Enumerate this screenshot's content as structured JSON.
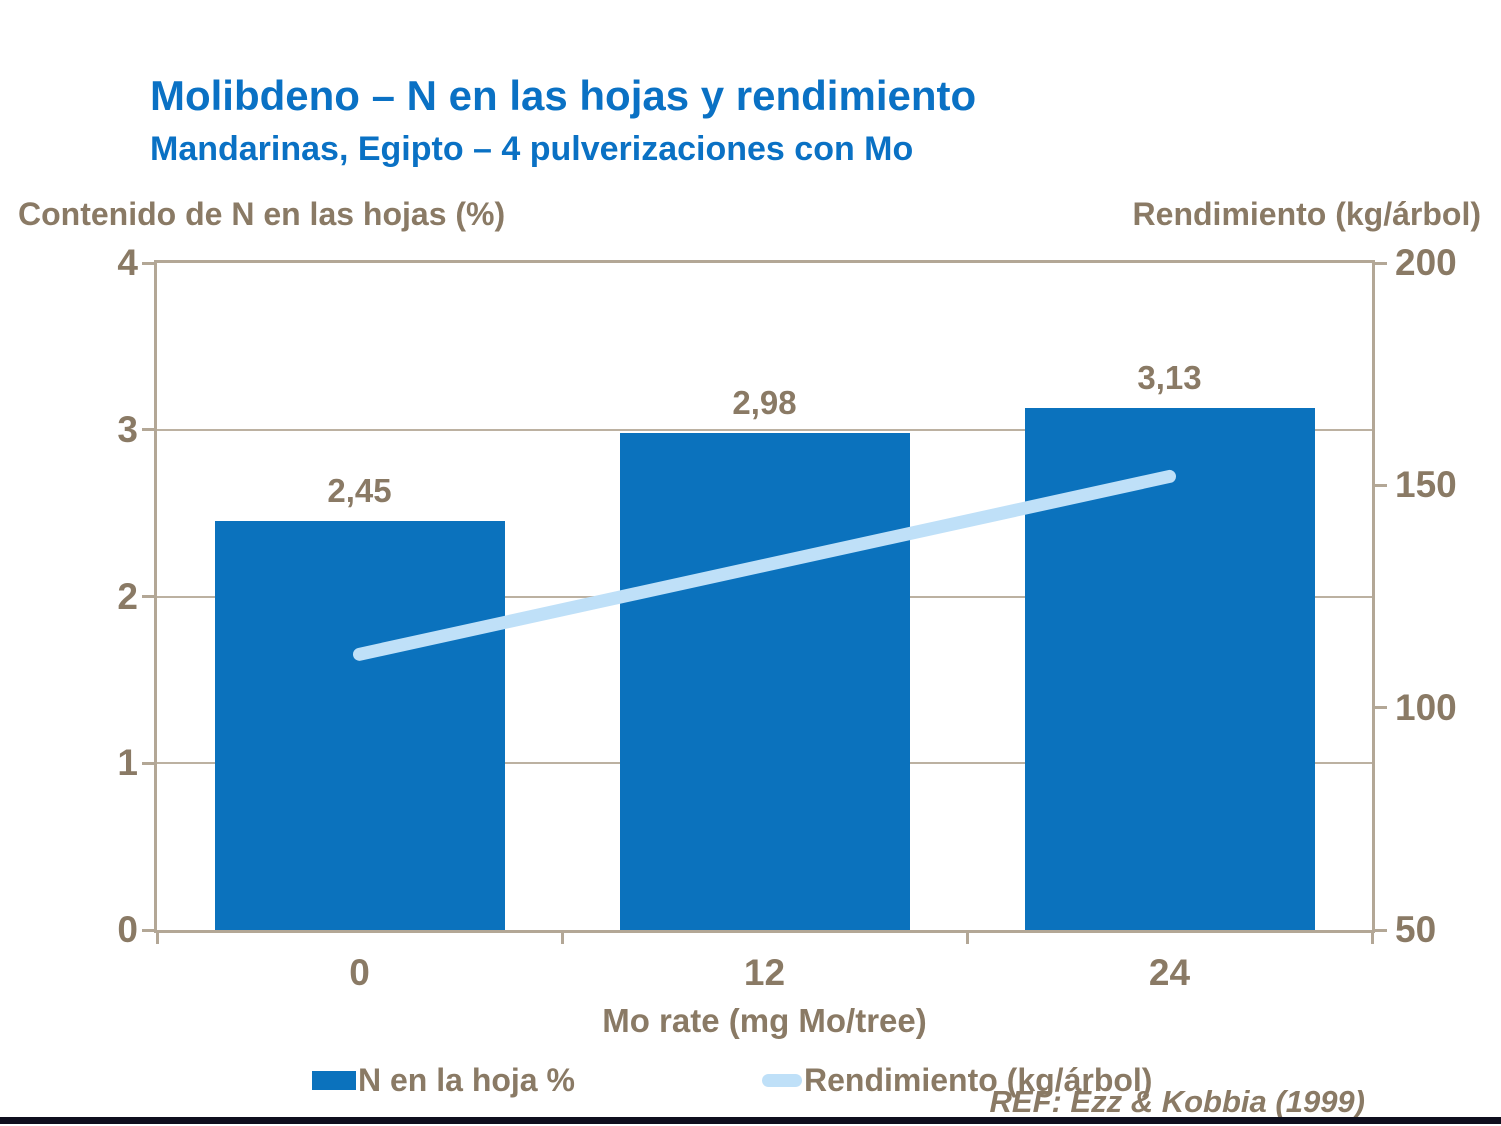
{
  "slide": {
    "title": "Molibdeno – N en las hojas y rendimiento",
    "subtitle": "Mandarinas, Egipto – 4 pulverizaciones con Mo",
    "reference": "REF: Ezz & Kobbia (1999)"
  },
  "colors": {
    "title_blue": "#0A71C4",
    "bar_blue": "#0B72BD",
    "line_light_blue": "#BFE0F8",
    "text_brown": "#8A7A65",
    "axis_tan": "#B3A796",
    "footer_band": "#0F0F1E"
  },
  "chart_data": {
    "type": "bar",
    "subtype": "combo bar + line, dual y-axis",
    "categories": [
      "0",
      "12",
      "24"
    ],
    "series": [
      {
        "name": "N en la hoja %",
        "type": "bar",
        "axis": "left",
        "values": [
          2.45,
          2.98,
          3.13
        ],
        "labels": [
          "2,45",
          "2,98",
          "3,13"
        ],
        "color": "#0B72BD"
      },
      {
        "name": "Rendimiento (kg/árbol)",
        "type": "line",
        "axis": "right",
        "values": [
          112,
          132,
          152
        ],
        "color": "#BFE0F8"
      }
    ],
    "left_axis": {
      "title": "Contenido de N en las hojas (%)",
      "min": 0,
      "max": 4,
      "ticks": [
        0,
        1,
        2,
        3,
        4
      ]
    },
    "right_axis": {
      "title": "Rendimiento (kg/árbol)",
      "min": 50,
      "max": 200,
      "ticks": [
        50,
        100,
        150,
        200
      ]
    },
    "x_axis": {
      "title": "Mo rate (mg Mo/tree)"
    },
    "legend": [
      "N en la hoja %",
      "Rendimiento (kg/árbol)"
    ],
    "grid": "horizontal gridlines at left-axis integers 1,2,3",
    "legend_position": "bottom"
  }
}
